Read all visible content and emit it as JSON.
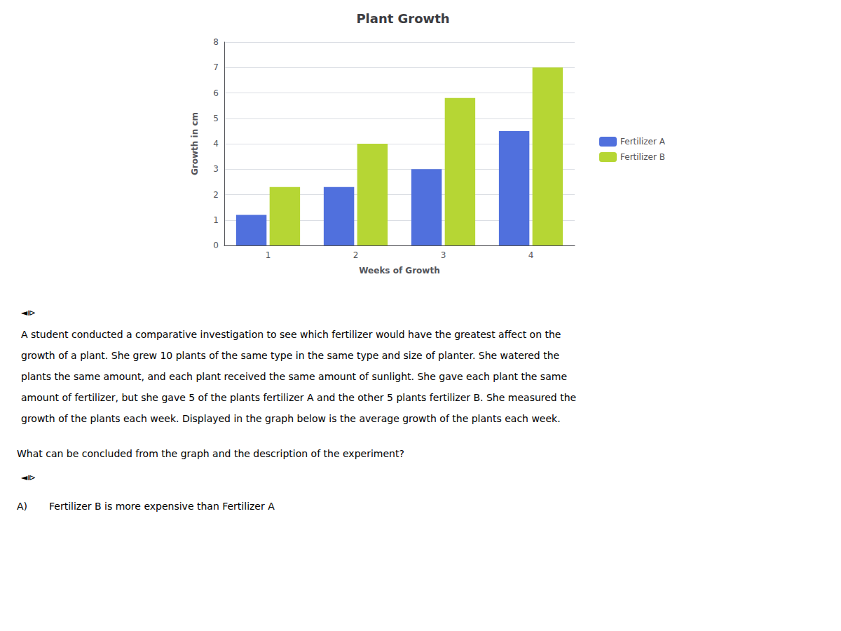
{
  "chart_data": {
    "type": "bar",
    "title": "Plant Growth",
    "xlabel": "Weeks of Growth",
    "ylabel": "Growth in cm",
    "categories": [
      1,
      2,
      3,
      4
    ],
    "series": [
      {
        "name": "Fertilizer A",
        "values": [
          1.2,
          2.3,
          3.0,
          4.5
        ]
      },
      {
        "name": "Fertilizer B",
        "values": [
          2.3,
          4.0,
          5.8,
          7.0
        ]
      }
    ],
    "ylim": [
      0,
      8
    ],
    "yticks": [
      0,
      1,
      2,
      3,
      4,
      5,
      6,
      7,
      8
    ],
    "grid": true,
    "legend": "right",
    "annotations": [
      "◄⧐",
      "A student conducted a comparative investigation to see which fertilizer would have the greatest affect on the",
      "growth of a plant. She grew 10 plants of the same type in the same type and size of planter. She watered the",
      "plants the same amount, and each plant received the same amount of sunlight. She gave each plant the same",
      "amount of fertilizer, but she gave 5 of the plants fertilizer A and the other 5 plants fertilizer B. She measured the",
      "growth of the plants each week. Displayed in the graph below is the average growth of the plants each week.",
      "What can be concluded from the graph and the description of the experiment?",
      "◄⧐",
      "A)",
      "Fertilizer B is more expensive than Fertilizer A"
    ]
  }
}
